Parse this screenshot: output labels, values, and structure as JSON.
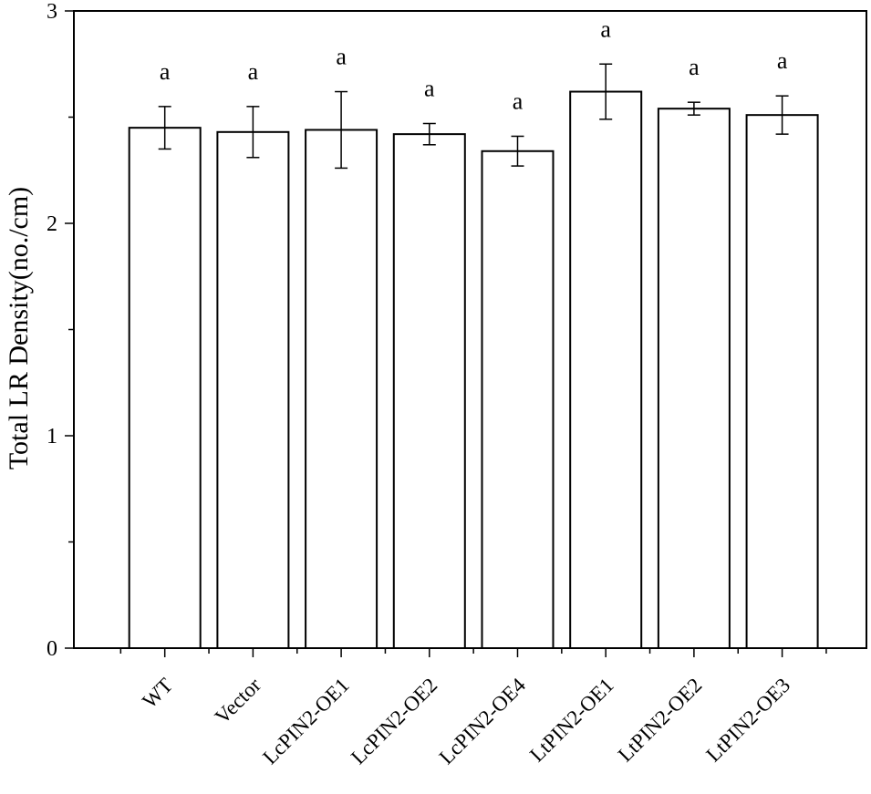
{
  "chart_data": {
    "type": "bar",
    "title": "",
    "xlabel": "",
    "ylabel": "Total LR Density(no./cm)",
    "ylim": [
      0,
      3
    ],
    "yticks": [
      "0",
      "1",
      "2",
      "3"
    ],
    "grid": false,
    "legend": "none",
    "categories": [
      "WT",
      "Vector",
      "LcPIN2-OE1",
      "LcPIN2-OE2",
      "LcPIN2-OE4",
      "LtPIN2-OE1",
      "LtPIN2-OE2",
      "LtPIN2-OE3"
    ],
    "values": [
      2.45,
      2.43,
      2.44,
      2.42,
      2.34,
      2.62,
      2.54,
      2.51
    ],
    "errors": [
      0.1,
      0.12,
      0.18,
      0.05,
      0.07,
      0.13,
      0.03,
      0.09
    ],
    "significance": [
      "a",
      "a",
      "a",
      "a",
      "a",
      "a",
      "a",
      "a"
    ],
    "colors": {
      "bar_fill": "#ffffff",
      "stroke": "#000000"
    }
  }
}
